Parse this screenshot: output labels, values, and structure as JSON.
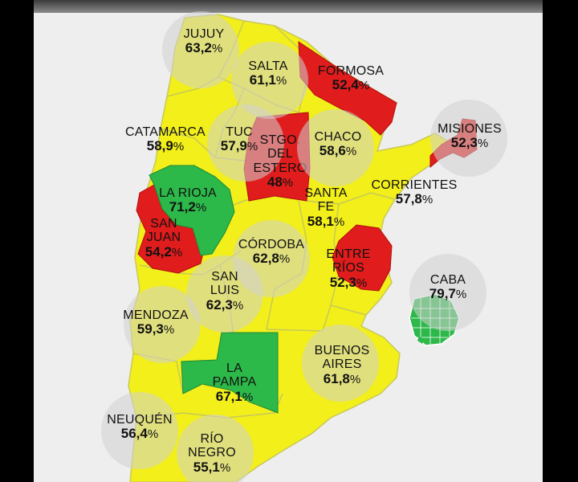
{
  "colors": {
    "high": "#2db84a",
    "mid": "#f2ef1a",
    "low": "#e01c1c",
    "border": "#cfcf6a",
    "background": "#eeeeee"
  },
  "percent_sign": "%",
  "provinces": [
    {
      "id": "jujuy",
      "lines": [
        "JUJUY"
      ],
      "value": "63,2",
      "color": "mid"
    },
    {
      "id": "salta",
      "lines": [
        "SALTA"
      ],
      "value": "61,1",
      "color": "mid"
    },
    {
      "id": "formosa",
      "lines": [
        "FORMOSA"
      ],
      "value": "52,4",
      "color": "low"
    },
    {
      "id": "misiones",
      "lines": [
        "MISIONES"
      ],
      "value": "52,3",
      "color": "low"
    },
    {
      "id": "catamarca",
      "lines": [
        "CATAMARCA"
      ],
      "value": "58,9",
      "color": "mid"
    },
    {
      "id": "tucuman",
      "lines": [
        "TUC"
      ],
      "value": "57,9",
      "color": "mid"
    },
    {
      "id": "stgo-del-estero",
      "lines": [
        "STGO.",
        "DEL",
        "ESTERO"
      ],
      "value": "48",
      "color": "low"
    },
    {
      "id": "chaco",
      "lines": [
        "CHACO"
      ],
      "value": "58,6",
      "color": "mid"
    },
    {
      "id": "corrientes",
      "lines": [
        "CORRIENTES"
      ],
      "value": "57,8",
      "color": "mid"
    },
    {
      "id": "la-rioja",
      "lines": [
        "LA RIOJA"
      ],
      "value": "71,2",
      "color": "high"
    },
    {
      "id": "santa-fe",
      "lines": [
        "SANTA",
        "FE"
      ],
      "value": "58,1",
      "color": "mid"
    },
    {
      "id": "san-juan",
      "lines": [
        "SAN",
        "JUAN"
      ],
      "value": "54,2",
      "color": "low"
    },
    {
      "id": "cordoba",
      "lines": [
        "CÓRDOBA"
      ],
      "value": "62,8",
      "color": "mid"
    },
    {
      "id": "entre-rios",
      "lines": [
        "ENTRE",
        "RÍOS"
      ],
      "value": "52,3",
      "color": "low"
    },
    {
      "id": "caba",
      "lines": [
        "CABA"
      ],
      "value": "79,7",
      "color": "high"
    },
    {
      "id": "san-luis",
      "lines": [
        "SAN",
        "LUIS"
      ],
      "value": "62,3",
      "color": "mid"
    },
    {
      "id": "mendoza",
      "lines": [
        "MENDOZA"
      ],
      "value": "59,3",
      "color": "mid"
    },
    {
      "id": "buenos-aires",
      "lines": [
        "BUENOS",
        "AIRES"
      ],
      "value": "61,8",
      "color": "mid"
    },
    {
      "id": "la-pampa",
      "lines": [
        "LA",
        "PAMPA"
      ],
      "value": "67,1",
      "color": "high"
    },
    {
      "id": "neuquen",
      "lines": [
        "NEUQUÉN"
      ],
      "value": "56,4",
      "color": "mid"
    },
    {
      "id": "rio-negro",
      "lines": [
        "RÍO",
        "NEGRO"
      ],
      "value": "55,1",
      "color": "mid"
    }
  ]
}
